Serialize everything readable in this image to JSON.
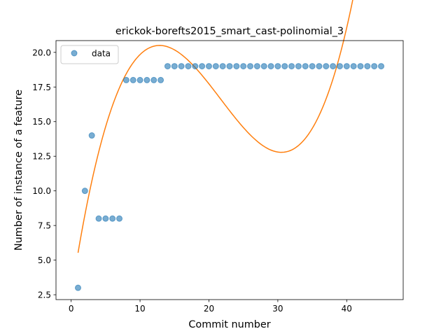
{
  "chart_data": {
    "type": "scatter",
    "title": "erickok-borefts2015_smart_cast-polinomial_3",
    "xlabel": "Commit number",
    "ylabel": "Number of instance of a feature",
    "xlim": [
      -2.2,
      48.2
    ],
    "ylim": [
      2.15,
      20.85
    ],
    "xticks": [
      0,
      10,
      20,
      30,
      40
    ],
    "xtick_labels": [
      "0",
      "10",
      "20",
      "30",
      "40"
    ],
    "yticks": [
      2.5,
      5.0,
      7.5,
      10.0,
      12.5,
      15.0,
      17.5,
      20.0
    ],
    "ytick_labels": [
      "2.5",
      "5.0",
      "7.5",
      "10.0",
      "12.5",
      "15.0",
      "17.5",
      "20.0"
    ],
    "grid": false,
    "legend_position": "upper-left",
    "series": [
      {
        "name": "data",
        "kind": "scatter",
        "color": "#1f77b4",
        "x": [
          1,
          2,
          3,
          4,
          5,
          6,
          7,
          8,
          9,
          10,
          11,
          12,
          13,
          14,
          15,
          16,
          17,
          18,
          19,
          20,
          21,
          22,
          23,
          24,
          25,
          26,
          27,
          28,
          29,
          30,
          31,
          32,
          33,
          34,
          35,
          36,
          37,
          38,
          39,
          40,
          41,
          42,
          43,
          44,
          45
        ],
        "y": [
          3,
          10,
          14,
          8,
          8,
          8,
          8,
          18,
          18,
          18,
          18,
          18,
          18,
          19,
          19,
          19,
          19,
          19,
          19,
          19,
          19,
          19,
          19,
          19,
          19,
          19,
          19,
          19,
          19,
          19,
          19,
          19,
          19,
          19,
          19,
          19,
          19,
          19,
          19,
          19,
          19,
          19,
          19,
          19,
          19
        ]
      },
      {
        "kind": "line",
        "color": "#ff7f0e",
        "x": [
          1,
          45
        ],
        "coefficients": [
          2.4366,
          3.2737,
          -0.18116,
          0.0027852
        ],
        "note_fit": "cubic polynomial y = a0 + a1*x + a2*x^2 + a3*x^3"
      }
    ]
  }
}
